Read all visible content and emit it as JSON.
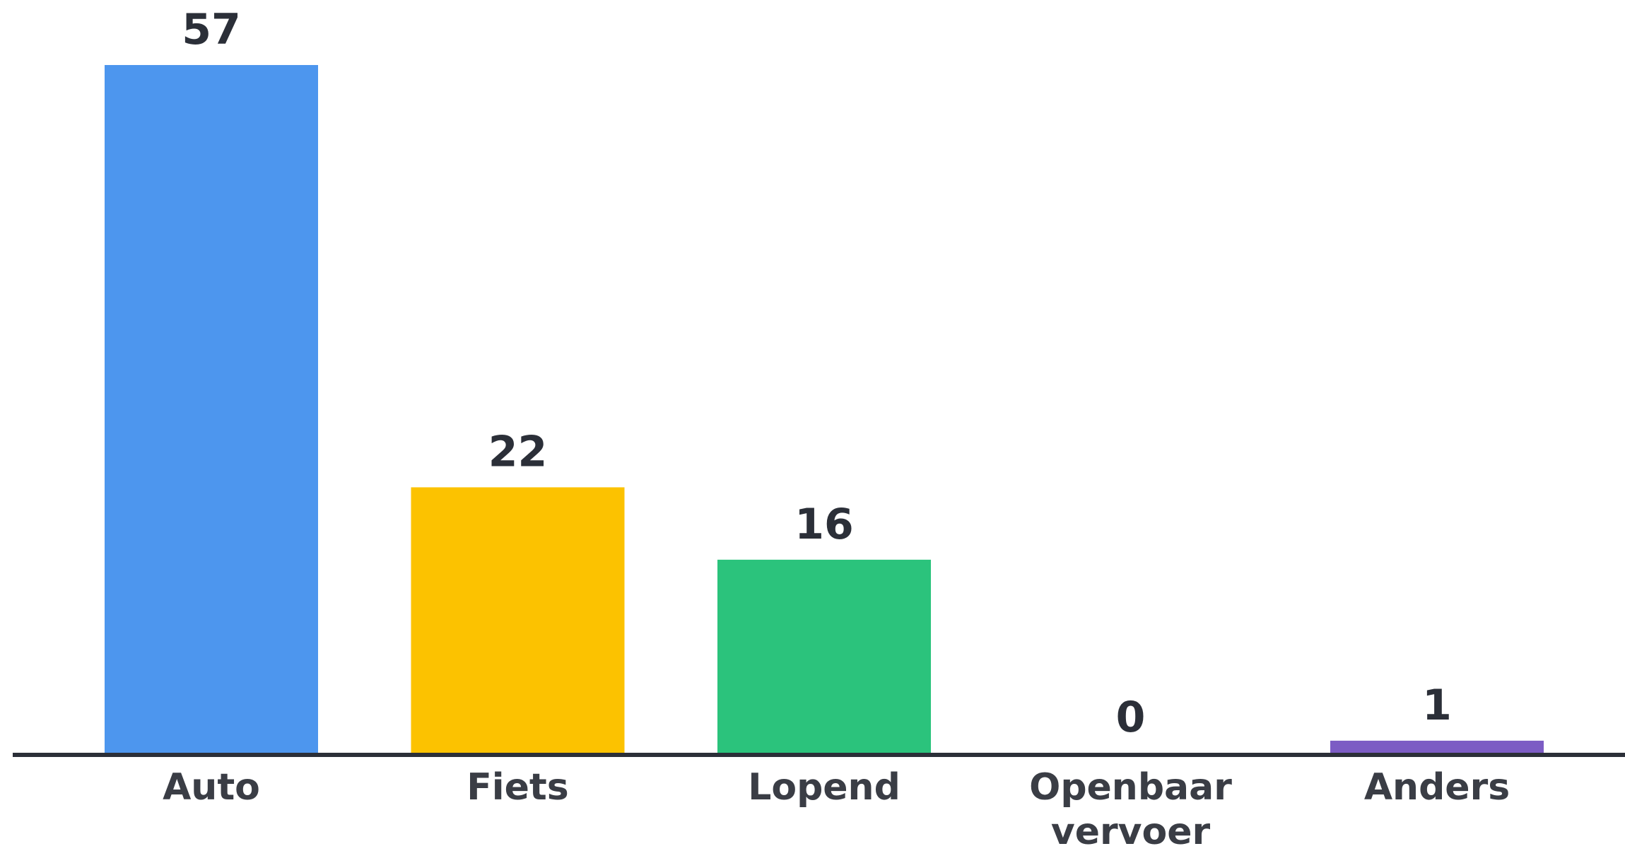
{
  "chart_data": {
    "type": "bar",
    "categories": [
      [
        "Auto"
      ],
      [
        "Fiets"
      ],
      [
        "Lopend"
      ],
      [
        "Openbaar",
        "vervoer"
      ],
      [
        "Anders"
      ]
    ],
    "values": [
      57,
      22,
      16,
      0,
      1
    ],
    "colors": [
      "#4d96ee",
      "#fcc200",
      "#2bc37c",
      "#4d96ee",
      "#7c5cc4"
    ],
    "axis_color": "#2b2f38",
    "ylim": [
      0,
      57
    ],
    "grid": false,
    "legend": "none",
    "title": "",
    "xlabel": "",
    "ylabel": ""
  }
}
